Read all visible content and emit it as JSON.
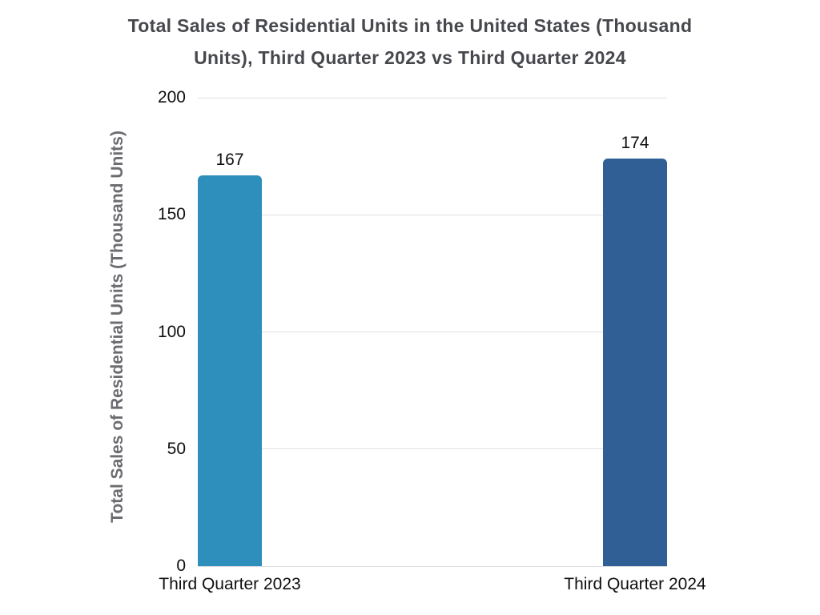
{
  "chart_data": {
    "type": "bar",
    "title": "Total Sales of Residential Units in the United States (Thousand Units), Third Quarter 2023 vs Third Quarter 2024",
    "title_lines": [
      "Total Sales of Residential Units in the United States (Thousand",
      "Units), Third Quarter 2023 vs Third Quarter 2024"
    ],
    "categories": [
      "Third Quarter 2023",
      "Third Quarter 2024"
    ],
    "values": [
      167,
      174
    ],
    "value_labels": [
      "167",
      "174"
    ],
    "bar_colors": [
      "#2E8FBC",
      "#305F96"
    ],
    "xlabel": "",
    "ylabel": "Total Sales of Residential Units (Thousand Units)",
    "ylim": [
      0,
      200
    ],
    "yticks": [
      0,
      50,
      100,
      150,
      200
    ],
    "grid": "horizontal",
    "legend": "none"
  },
  "colors": {
    "background": "#FFFFFF",
    "title_text": "#47484D",
    "axis_title_text": "#6B6C70",
    "tick_label_text": "#0F0F10",
    "gridline": "#E0E0E0",
    "bar_2023": "#2E8FBC",
    "bar_2024": "#305F96"
  }
}
